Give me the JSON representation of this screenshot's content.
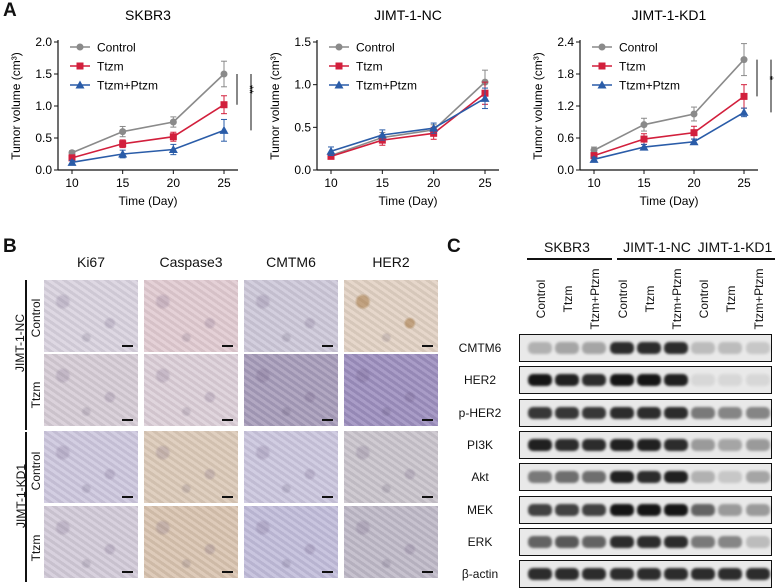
{
  "panel_labels": {
    "a": "A",
    "b": "B",
    "c": "C"
  },
  "colors": {
    "control": "#8a8a8a",
    "ttzm": "#d21f3c",
    "ttzm_ptzm": "#2a5ca8"
  },
  "chart_data": [
    {
      "type": "line",
      "title": "SKBR3",
      "xlabel": "Time (Day)",
      "ylabel": "Tumor volume (cm³)",
      "x": [
        10,
        15,
        20,
        25
      ],
      "xticks": [
        "10",
        "15",
        "20",
        "25"
      ],
      "yticks": [
        "0.0",
        "0.5",
        "1.0",
        "1.5",
        "2.0"
      ],
      "ylim": [
        0,
        2.0
      ],
      "series": [
        {
          "name": "Control",
          "values": [
            0.27,
            0.6,
            0.75,
            1.5
          ],
          "err": [
            0.03,
            0.08,
            0.08,
            0.2
          ]
        },
        {
          "name": "Ttzm",
          "values": [
            0.19,
            0.41,
            0.52,
            1.02
          ],
          "err": [
            0.03,
            0.06,
            0.07,
            0.14
          ]
        },
        {
          "name": "Ttzm+Ptzm",
          "values": [
            0.12,
            0.25,
            0.32,
            0.62
          ],
          "err": [
            0.03,
            0.06,
            0.08,
            0.17
          ]
        }
      ],
      "significance": [
        "**",
        "***"
      ]
    },
    {
      "type": "line",
      "title": "JIMT-1-NC",
      "xlabel": "Time (Day)",
      "ylabel": "Tumor volume (cm³)",
      "x": [
        10,
        15,
        20,
        25
      ],
      "xticks": [
        "10",
        "15",
        "20",
        "25"
      ],
      "yticks": [
        "0.0",
        "0.5",
        "1.0",
        "1.5"
      ],
      "ylim": [
        0,
        1.5
      ],
      "series": [
        {
          "name": "Control",
          "values": [
            0.17,
            0.38,
            0.47,
            1.03
          ],
          "err": [
            0.03,
            0.06,
            0.06,
            0.14
          ]
        },
        {
          "name": "Ttzm",
          "values": [
            0.16,
            0.35,
            0.43,
            0.9
          ],
          "err": [
            0.03,
            0.06,
            0.07,
            0.13
          ]
        },
        {
          "name": "Ttzm+Ptzm",
          "values": [
            0.22,
            0.41,
            0.49,
            0.84
          ],
          "err": [
            0.05,
            0.06,
            0.06,
            0.12
          ]
        }
      ],
      "significance": []
    },
    {
      "type": "line",
      "title": "JIMT-1-KD1",
      "xlabel": "Time (Day)",
      "ylabel": "Tumor volume (cm³)",
      "x": [
        10,
        15,
        20,
        25
      ],
      "xticks": [
        "10",
        "15",
        "20",
        "25"
      ],
      "yticks": [
        "0.0",
        "0.6",
        "1.2",
        "1.8",
        "2.4"
      ],
      "ylim": [
        0,
        2.4
      ],
      "series": [
        {
          "name": "Control",
          "values": [
            0.37,
            0.85,
            1.05,
            2.07
          ],
          "err": [
            0.06,
            0.12,
            0.13,
            0.3
          ]
        },
        {
          "name": "Ttzm",
          "values": [
            0.27,
            0.58,
            0.7,
            1.38
          ],
          "err": [
            0.05,
            0.1,
            0.12,
            0.22
          ]
        },
        {
          "name": "Ttzm+Ptzm",
          "values": [
            0.2,
            0.43,
            0.53,
            1.08
          ],
          "err": [
            0.04,
            0.05,
            0.05,
            0.08
          ]
        }
      ],
      "significance": [
        "*",
        "***"
      ]
    }
  ],
  "ihc": {
    "columns": [
      "Ki67",
      "Caspase3",
      "CMTM6",
      "HER2"
    ],
    "groups": [
      {
        "name": "JIMT-1-NC",
        "rows": [
          "Control",
          "Ttzm"
        ]
      },
      {
        "name": "JIMT-1-KD1",
        "rows": [
          "Control",
          "Ttzm"
        ]
      }
    ]
  },
  "western": {
    "groups": [
      "SKBR3",
      "JIMT-1-NC",
      "JIMT-1-KD1"
    ],
    "lanes": [
      "Control",
      "Ttzm",
      "Ttzm+Ptzm",
      "Control",
      "Ttzm",
      "Ttzm+Ptzm",
      "Control",
      "Ttzm",
      "Ttzm+Ptzm"
    ],
    "proteins": [
      "CMTM6",
      "HER2",
      "p-HER2",
      "PI3K",
      "Akt",
      "MEK",
      "ERK",
      "β-actin"
    ],
    "intensity": [
      [
        0.25,
        0.3,
        0.3,
        0.85,
        0.85,
        0.85,
        0.2,
        0.2,
        0.15
      ],
      [
        0.95,
        0.9,
        0.85,
        0.95,
        0.95,
        0.9,
        0.08,
        0.08,
        0.08
      ],
      [
        0.8,
        0.8,
        0.8,
        0.85,
        0.85,
        0.85,
        0.5,
        0.45,
        0.45
      ],
      [
        0.9,
        0.85,
        0.85,
        0.9,
        0.9,
        0.85,
        0.35,
        0.3,
        0.35
      ],
      [
        0.5,
        0.55,
        0.55,
        0.9,
        0.85,
        0.9,
        0.25,
        0.15,
        0.3
      ],
      [
        0.75,
        0.75,
        0.75,
        0.95,
        0.95,
        0.95,
        0.6,
        0.35,
        0.35
      ],
      [
        0.6,
        0.65,
        0.6,
        0.85,
        0.85,
        0.85,
        0.5,
        0.45,
        0.2
      ],
      [
        0.85,
        0.85,
        0.85,
        0.85,
        0.85,
        0.85,
        0.85,
        0.85,
        0.85
      ]
    ]
  }
}
